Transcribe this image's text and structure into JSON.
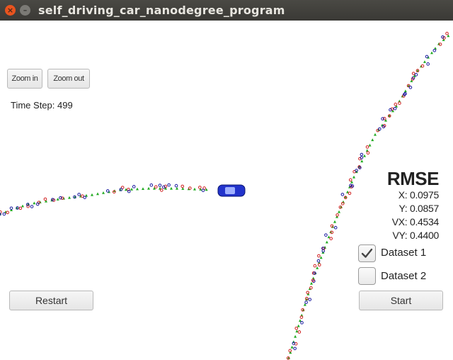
{
  "window": {
    "title": "self_driving_car_nanodegree_program",
    "close_glyph": "×",
    "minimize_glyph": "–"
  },
  "toolbar": {
    "zoom_in": "Zoom in",
    "zoom_out": "Zoom out"
  },
  "status": {
    "time_step": "Time Step: 499"
  },
  "rmse": {
    "title": "RMSE",
    "x": "X: 0.0975",
    "y": "Y: 0.0857",
    "vx": "VX: 0.4534",
    "vy": "VY: 0.4400"
  },
  "datasets": {
    "dataset1": {
      "label": "Dataset 1",
      "checked": true
    },
    "dataset2": {
      "label": "Dataset 2",
      "checked": false
    }
  },
  "controls": {
    "restart": "Restart",
    "start": "Start"
  },
  "colors": {
    "estimate": "#22aa22",
    "lidar": "#d02020",
    "radar": "#1a1aa0",
    "car": "#2233cc"
  },
  "icons": {
    "car": "car-icon",
    "checkmark": "checkmark-icon"
  }
}
